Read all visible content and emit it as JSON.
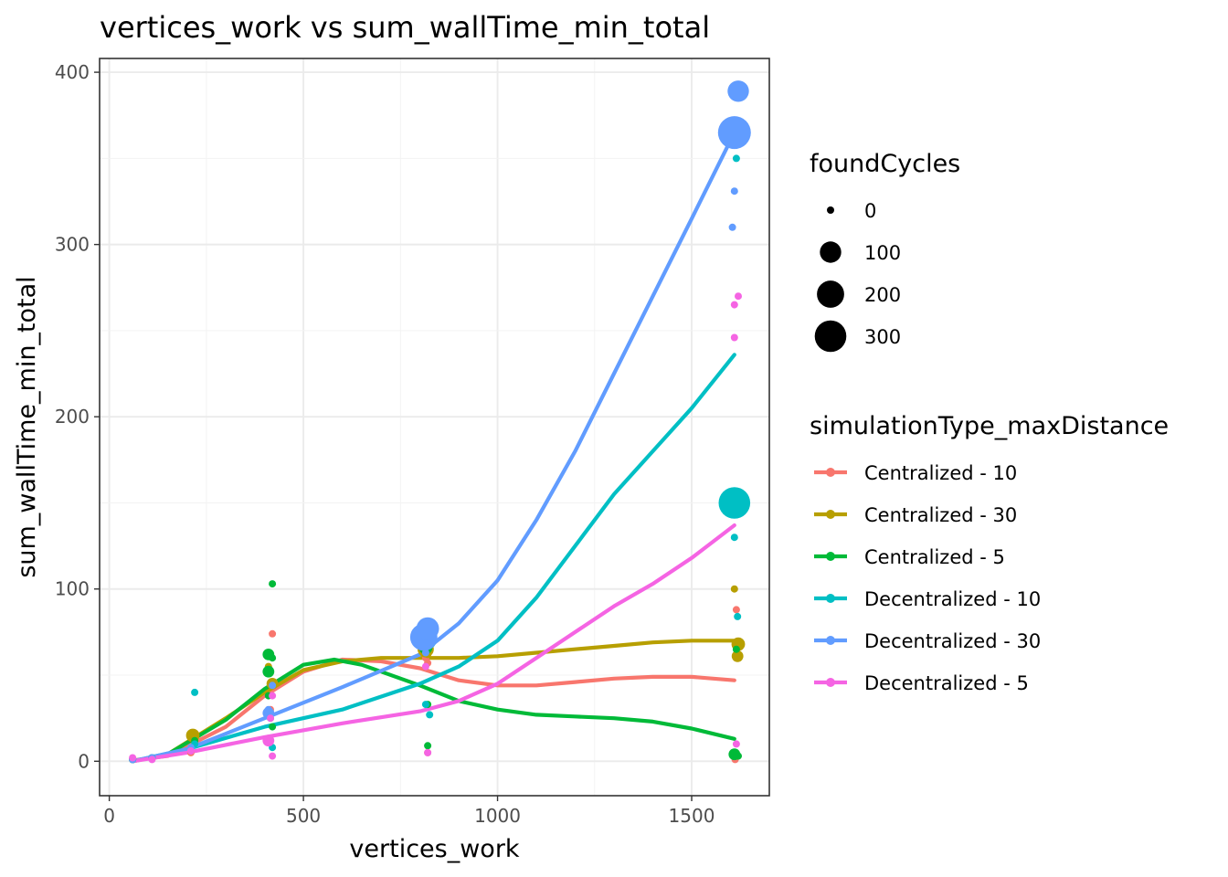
{
  "chart_data": {
    "type": "scatter",
    "title": "vertices_work  vs  sum_wallTime_min_total",
    "xlabel": "vertices_work",
    "ylabel": "sum_wallTime_min_total",
    "xlim": [
      -25,
      1700
    ],
    "ylim": [
      -20,
      408
    ],
    "x_ticks": [
      0,
      500,
      1000,
      1500
    ],
    "y_ticks": [
      0,
      100,
      200,
      300,
      400
    ],
    "grid": true,
    "size_legend": {
      "title": "foundCycles",
      "entries": [
        {
          "label": "0",
          "value": 0
        },
        {
          "label": "100",
          "value": 100
        },
        {
          "label": "200",
          "value": 200
        },
        {
          "label": "300",
          "value": 300
        }
      ]
    },
    "color_legend": {
      "title": "simulationType_maxDistance",
      "position": "right"
    },
    "series": [
      {
        "name": "Centralized - 10",
        "color": "#F8766D",
        "points": [
          [
            60,
            1,
            0
          ],
          [
            110,
            2,
            0
          ],
          [
            210,
            5,
            0
          ],
          [
            420,
            74,
            0
          ],
          [
            415,
            30,
            0
          ],
          [
            410,
            13,
            0
          ],
          [
            815,
            60,
            0
          ],
          [
            820,
            57,
            0
          ],
          [
            820,
            5,
            0
          ],
          [
            1615,
            88,
            0
          ],
          [
            1615,
            62,
            0
          ],
          [
            1612,
            3,
            0
          ],
          [
            1612,
            1,
            0
          ]
        ],
        "smooth": [
          [
            60,
            0.5
          ],
          [
            150,
            3
          ],
          [
            300,
            20
          ],
          [
            400,
            38
          ],
          [
            500,
            52
          ],
          [
            600,
            59
          ],
          [
            700,
            58
          ],
          [
            800,
            54
          ],
          [
            900,
            47
          ],
          [
            1000,
            44
          ],
          [
            1100,
            44
          ],
          [
            1200,
            46
          ],
          [
            1300,
            48
          ],
          [
            1400,
            49
          ],
          [
            1500,
            49
          ],
          [
            1610,
            47
          ]
        ]
      },
      {
        "name": "Centralized - 30",
        "color": "#B79F00",
        "points": [
          [
            60,
            1,
            0
          ],
          [
            110,
            2,
            0
          ],
          [
            215,
            15,
            20
          ],
          [
            410,
            55,
            0
          ],
          [
            420,
            45,
            10
          ],
          [
            815,
            65,
            40
          ],
          [
            820,
            62,
            0
          ],
          [
            1610,
            100,
            0
          ],
          [
            1615,
            61,
            0
          ],
          [
            1618,
            61,
            10
          ],
          [
            1620,
            68,
            20
          ]
        ],
        "smooth": [
          [
            60,
            0
          ],
          [
            150,
            4
          ],
          [
            300,
            25
          ],
          [
            400,
            40
          ],
          [
            500,
            53
          ],
          [
            600,
            58
          ],
          [
            700,
            60
          ],
          [
            800,
            60
          ],
          [
            900,
            60
          ],
          [
            1000,
            61
          ],
          [
            1100,
            63
          ],
          [
            1200,
            65
          ],
          [
            1300,
            67
          ],
          [
            1400,
            69
          ],
          [
            1500,
            70
          ],
          [
            1610,
            70
          ]
        ]
      },
      {
        "name": "Centralized - 5",
        "color": "#00BA38",
        "points": [
          [
            60,
            1,
            0
          ],
          [
            110,
            2,
            0
          ],
          [
            220,
            12,
            0
          ],
          [
            420,
            103,
            0
          ],
          [
            410,
            62,
            10
          ],
          [
            410,
            52,
            10
          ],
          [
            420,
            60,
            0
          ],
          [
            410,
            38,
            0
          ],
          [
            420,
            20,
            0
          ],
          [
            815,
            66,
            20
          ],
          [
            820,
            33,
            0
          ],
          [
            820,
            9,
            0
          ],
          [
            1615,
            65,
            0
          ],
          [
            1610,
            4,
            10
          ],
          [
            1620,
            3,
            0
          ]
        ],
        "smooth": [
          [
            60,
            0
          ],
          [
            150,
            4
          ],
          [
            300,
            24
          ],
          [
            400,
            42
          ],
          [
            500,
            56
          ],
          [
            580,
            59
          ],
          [
            650,
            56
          ],
          [
            700,
            52
          ],
          [
            800,
            44
          ],
          [
            900,
            35
          ],
          [
            1000,
            30
          ],
          [
            1100,
            27
          ],
          [
            1200,
            26
          ],
          [
            1300,
            25
          ],
          [
            1400,
            23
          ],
          [
            1500,
            19
          ],
          [
            1610,
            13
          ]
        ]
      },
      {
        "name": "Decentralized - 10",
        "color": "#00BFC4",
        "points": [
          [
            60,
            1,
            0
          ],
          [
            110,
            2,
            0
          ],
          [
            220,
            40,
            0
          ],
          [
            220,
            10,
            0
          ],
          [
            415,
            25,
            0
          ],
          [
            420,
            8,
            0
          ],
          [
            820,
            70,
            50
          ],
          [
            815,
            33,
            0
          ],
          [
            825,
            27,
            0
          ],
          [
            1610,
            150,
            300
          ],
          [
            1615,
            350,
            0
          ],
          [
            1610,
            130,
            0
          ],
          [
            1618,
            84,
            0
          ]
        ],
        "smooth": [
          [
            60,
            0
          ],
          [
            200,
            7
          ],
          [
            400,
            20
          ],
          [
            600,
            30
          ],
          [
            800,
            45
          ],
          [
            900,
            55
          ],
          [
            1000,
            70
          ],
          [
            1100,
            95
          ],
          [
            1200,
            125
          ],
          [
            1300,
            155
          ],
          [
            1400,
            180
          ],
          [
            1500,
            205
          ],
          [
            1610,
            236
          ]
        ]
      },
      {
        "name": "Decentralized - 30",
        "color": "#619CFF",
        "points": [
          [
            60,
            1,
            0
          ],
          [
            110,
            2,
            0
          ],
          [
            210,
            8,
            0
          ],
          [
            410,
            30,
            0
          ],
          [
            410,
            28,
            10
          ],
          [
            420,
            44,
            0
          ],
          [
            810,
            72,
            200
          ],
          [
            820,
            77,
            120
          ],
          [
            815,
            63,
            0
          ],
          [
            1610,
            365,
            330
          ],
          [
            1620,
            389,
            100
          ],
          [
            1610,
            331,
            0
          ],
          [
            1605,
            310,
            0
          ]
        ],
        "smooth": [
          [
            60,
            0
          ],
          [
            200,
            7
          ],
          [
            400,
            25
          ],
          [
            600,
            43
          ],
          [
            800,
            62
          ],
          [
            900,
            80
          ],
          [
            1000,
            105
          ],
          [
            1100,
            140
          ],
          [
            1200,
            180
          ],
          [
            1300,
            225
          ],
          [
            1400,
            270
          ],
          [
            1500,
            315
          ],
          [
            1610,
            365
          ]
        ]
      },
      {
        "name": "Decentralized - 5",
        "color": "#F564E3",
        "points": [
          [
            60,
            2,
            0
          ],
          [
            110,
            1,
            0
          ],
          [
            210,
            6,
            0
          ],
          [
            420,
            38,
            0
          ],
          [
            415,
            25,
            0
          ],
          [
            410,
            12,
            10
          ],
          [
            420,
            3,
            0
          ],
          [
            815,
            55,
            0
          ],
          [
            820,
            5,
            0
          ],
          [
            1610,
            265,
            0
          ],
          [
            1620,
            270,
            0
          ],
          [
            1610,
            246,
            0
          ],
          [
            1615,
            10,
            0
          ]
        ],
        "smooth": [
          [
            60,
            0
          ],
          [
            200,
            5
          ],
          [
            400,
            14
          ],
          [
            600,
            22
          ],
          [
            800,
            29
          ],
          [
            900,
            35
          ],
          [
            1000,
            45
          ],
          [
            1100,
            60
          ],
          [
            1200,
            75
          ],
          [
            1300,
            90
          ],
          [
            1400,
            103
          ],
          [
            1500,
            118
          ],
          [
            1610,
            137
          ]
        ]
      }
    ]
  }
}
